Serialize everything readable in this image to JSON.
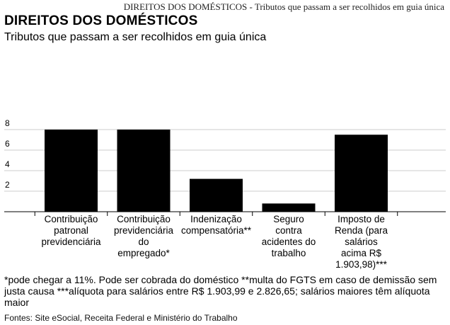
{
  "header": {
    "caption": "DIREITOS DOS DOMÉSTICOS - Tributos que passam a ser recolhidos em guia única",
    "title": "DIREITOS DOS DOMÉSTICOS",
    "subtitle": "Tributos que passam a ser recolhidos em guia única"
  },
  "chart_data": {
    "type": "bar",
    "title": "DIREITOS DOS DOMÉSTICOS",
    "subtitle": "Tributos que passam a ser recolhidos em guia única",
    "categories": [
      "Contribuição\npatronal\nprevidenciária",
      "Contribuição\nprevidenciária\ndo\nempregado*",
      "Indenização\ncompensatória**",
      "Seguro\ncontra\nacidentes do\ntrabalho",
      "Imposto de\nRenda (para\nsalários\nacima R$\n1.903,98)***"
    ],
    "values": [
      8,
      8,
      3.2,
      0.8,
      7.5
    ],
    "yticks": [
      2,
      4,
      6,
      8
    ],
    "ylim": [
      0,
      8.6
    ],
    "grid": true,
    "bar_color": "#000000",
    "grid_color": "#cccccc"
  },
  "footer": {
    "note": "*pode chegar a 11%. Pode ser cobrada do doméstico **multa do FGTS em caso de demissão sem justa causa ***alíquota para salários entre R$ 1.903,99 e 2.826,65; salários maiores têm alíquota maior",
    "source": "Fontes: Site eSocial, Receita Federal e Ministério do Trabalho"
  }
}
